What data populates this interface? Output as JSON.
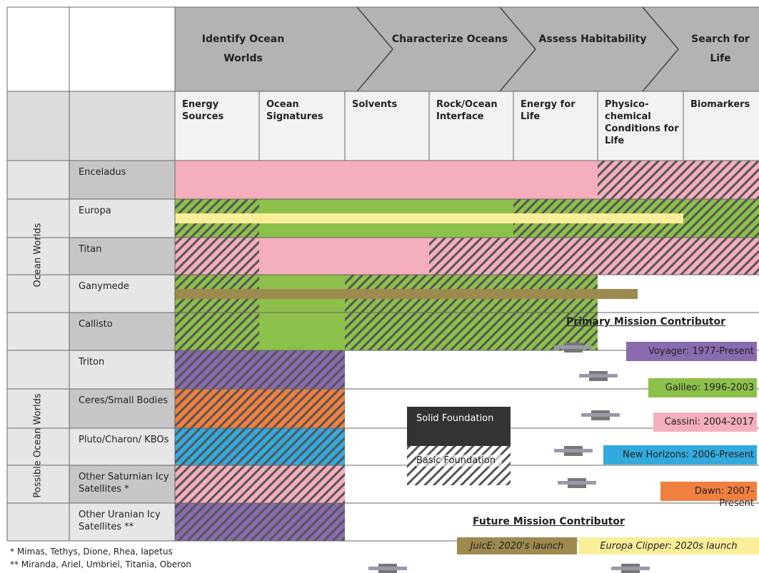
{
  "header": {
    "stages": [
      "Identify Ocean Worlds",
      "Characterize Oceans",
      "Assess Habitability",
      "Search for Life"
    ],
    "investigations": [
      "Energy Sources",
      "Ocean Signatures",
      "Solvents",
      "Rock/Ocean Interface",
      "Energy for Life",
      "Physico-chemical Conditions for Life",
      "Biomarkers"
    ]
  },
  "groups": [
    "Ocean Worlds",
    "Possible Ocean Worlds"
  ],
  "rows": [
    "Enceladus",
    "Europa",
    "Titan",
    "Ganymede",
    "Callisto",
    "Triton",
    "Ceres/Small Bodies",
    "Pluto/Charon/ KBOs",
    "Other Saturnian Icy Satellites *",
    "Other Uranian Icy Satellites **"
  ],
  "legend": {
    "solid": "Solid Foundation",
    "basic": "Basic Foundation",
    "primary_title": "Primary Mission Contributor",
    "primary": [
      "Voyager: 1977-Present",
      "Galileo: 1996-2003",
      "Cassini: 2004-2017",
      "New Horizons: 2006-Present",
      "Dawn: 2007-Present"
    ],
    "future_title": "Future Mission Contributor",
    "future": [
      "JuicE: 2020's launch",
      "Europa Clipper: 2020s launch"
    ]
  },
  "footnotes": [
    "* Mimas, Tethys, Dione, Rhea, Iapetus",
    "** Miranda, Ariel, Umbriel, Titania, Oberon"
  ]
}
